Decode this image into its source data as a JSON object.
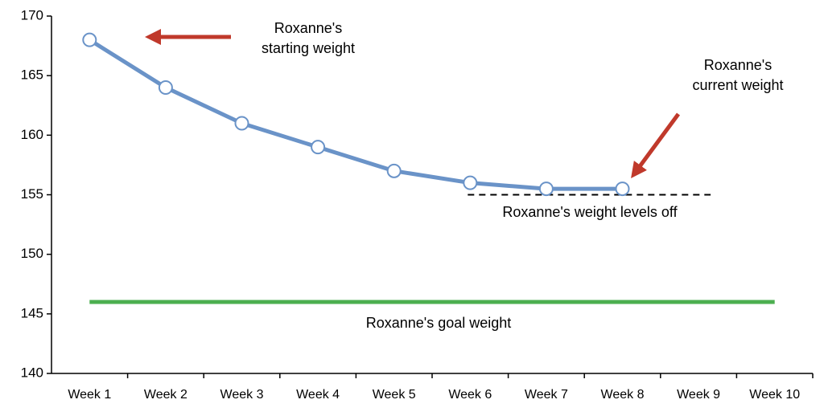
{
  "chart_data": {
    "type": "line",
    "categories": [
      "Week 1",
      "Week 2",
      "Week 3",
      "Week 4",
      "Week 5",
      "Week 6",
      "Week 7",
      "Week 8",
      "Week 9",
      "Week 10"
    ],
    "series": [
      {
        "color": "#6a93c8",
        "values": [
          168,
          164,
          161,
          159,
          157,
          156,
          155.5,
          155.5,
          null,
          null
        ]
      }
    ],
    "ylim": [
      140,
      170
    ],
    "yticks": [
      140,
      145,
      150,
      155,
      160,
      165,
      170
    ],
    "reference_lines": [
      {
        "value": 146,
        "label": "Roxanne's goal weight",
        "color": "#4caf50",
        "style": "solid"
      },
      {
        "value": 155,
        "label": "Roxanne's weight levels off",
        "color": "#000000",
        "style": "dashed"
      }
    ],
    "annotations": [
      {
        "lines": [
          "Roxanne's",
          "starting weight"
        ],
        "arrow_color": "#c0392b"
      },
      {
        "lines": [
          "Roxanne's",
          "current weight"
        ],
        "arrow_color": "#c0392b"
      }
    ]
  }
}
